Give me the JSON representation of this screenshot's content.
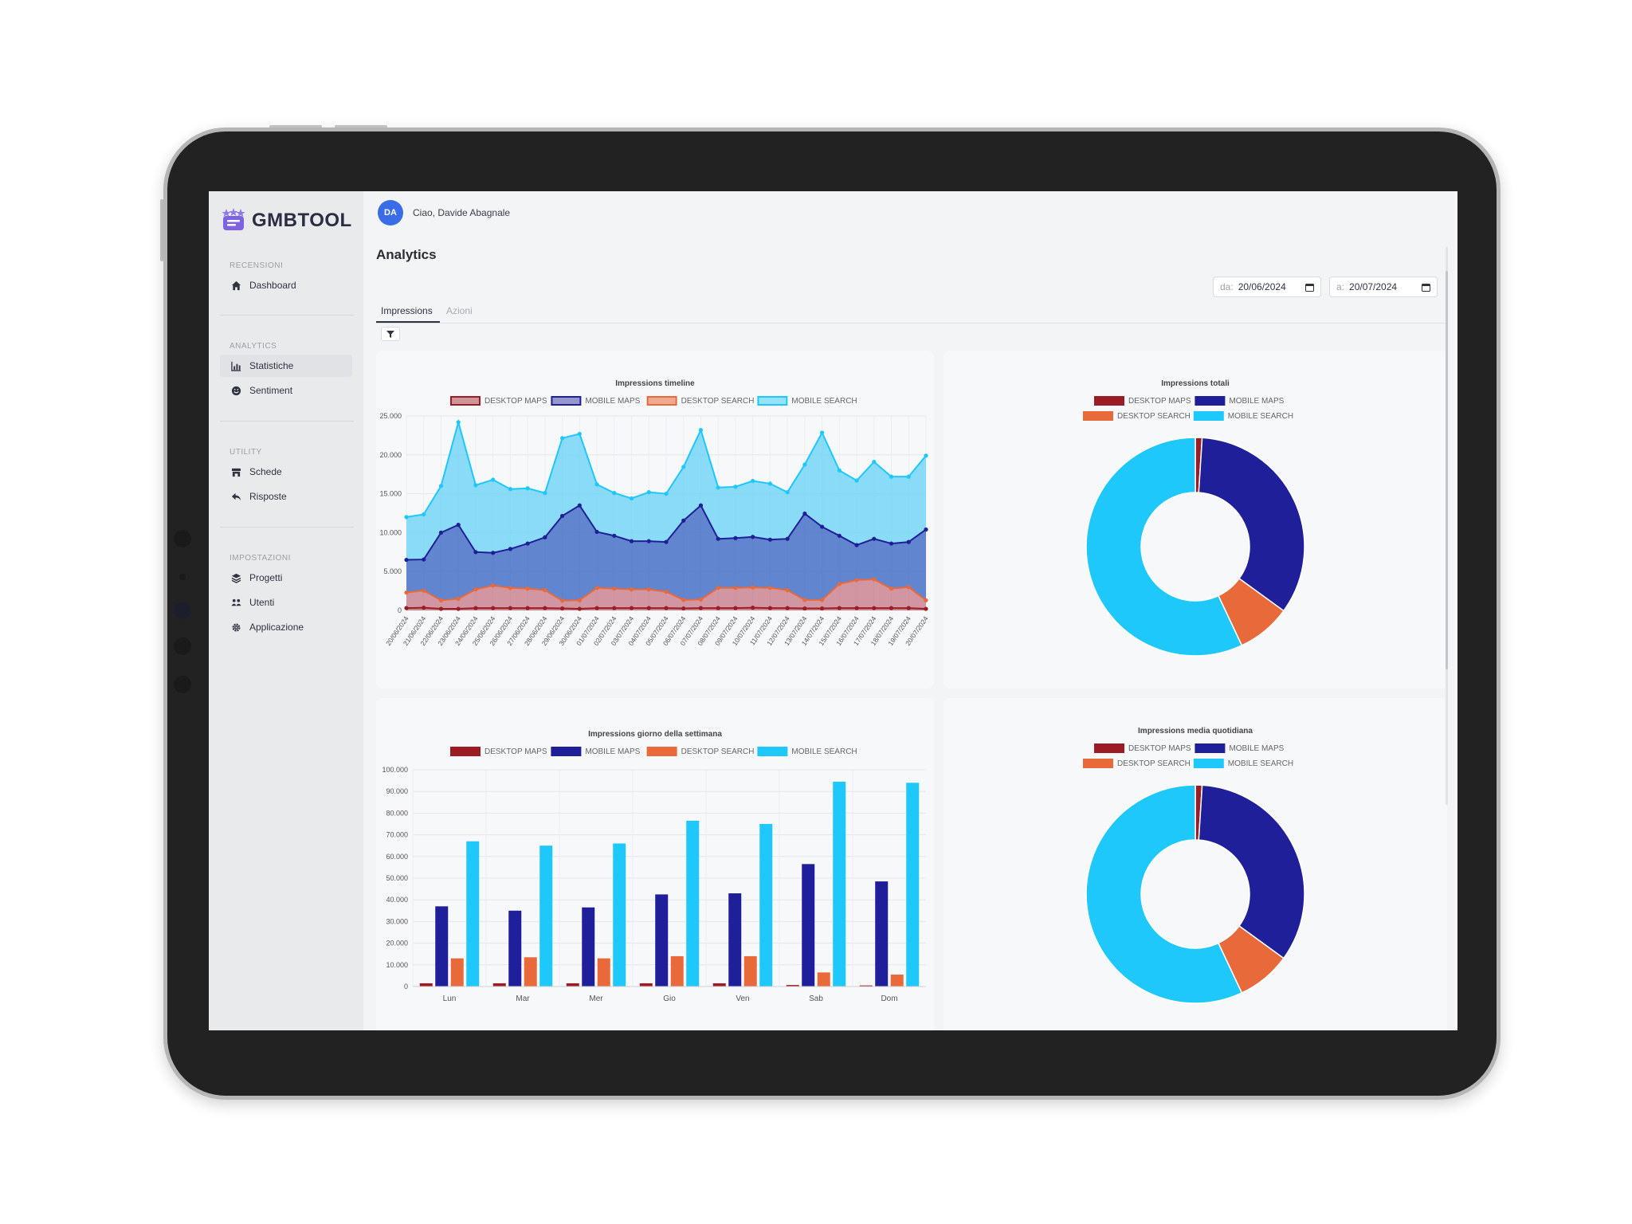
{
  "app": {
    "name": "GMBTOOL"
  },
  "user": {
    "initials": "DA",
    "greeting": "Ciao, Davide Abagnale"
  },
  "sidebar": {
    "sections": [
      {
        "title": "RECENSIONI",
        "items": [
          {
            "label": "Dashboard",
            "icon": "home-icon"
          }
        ]
      },
      {
        "title": "ANALYTICS",
        "items": [
          {
            "label": "Statistiche",
            "icon": "bar-chart-icon",
            "active": true
          },
          {
            "label": "Sentiment",
            "icon": "sentiment-icon"
          }
        ]
      },
      {
        "title": "UTILITY",
        "items": [
          {
            "label": "Schede",
            "icon": "store-icon"
          },
          {
            "label": "Risposte",
            "icon": "reply-icon"
          }
        ]
      },
      {
        "title": "IMPOSTAZIONI",
        "items": [
          {
            "label": "Progetti",
            "icon": "layers-icon"
          },
          {
            "label": "Utenti",
            "icon": "users-icon"
          },
          {
            "label": "Applicazione",
            "icon": "gear-icon"
          }
        ]
      }
    ]
  },
  "page": {
    "title": "Analytics"
  },
  "date_from": {
    "label": "da:",
    "value": "20/06/2024"
  },
  "date_to": {
    "label": "a:",
    "value": "20/07/2024"
  },
  "tabs": [
    {
      "label": "Impressions",
      "active": true
    },
    {
      "label": "Azioni",
      "active": false
    }
  ],
  "colors": {
    "desktop_maps": "#9b1c24",
    "mobile_maps": "#1f1f99",
    "desktop_search": "#e8693a",
    "mobile_search": "#1ec8fb",
    "accent": "#3b6ce8"
  },
  "chart_data": [
    {
      "type": "area",
      "title": "Impressions timeline",
      "x": [
        "20/06/2024",
        "21/06/2024",
        "22/06/2024",
        "23/06/2024",
        "24/06/2024",
        "25/06/2024",
        "26/06/2024",
        "27/06/2024",
        "28/06/2024",
        "29/06/2024",
        "30/06/2024",
        "01/07/2024",
        "02/07/2024",
        "03/07/2024",
        "04/07/2024",
        "05/07/2024",
        "06/07/2024",
        "07/07/2024",
        "08/07/2024",
        "09/07/2024",
        "10/07/2024",
        "11/07/2024",
        "12/07/2024",
        "13/07/2024",
        "14/07/2024",
        "15/07/2024",
        "16/07/2024",
        "17/07/2024",
        "18/07/2024",
        "19/07/2024",
        "20/07/2024"
      ],
      "ylim": [
        0,
        25000
      ],
      "yticks": [
        "0",
        "5.000",
        "10.000",
        "15.000",
        "20.000",
        "25.000"
      ],
      "stacked": true,
      "series": [
        {
          "name": "DESKTOP MAPS",
          "values": [
            300,
            350,
            200,
            200,
            300,
            300,
            300,
            300,
            300,
            250,
            200,
            300,
            300,
            300,
            300,
            300,
            250,
            300,
            300,
            300,
            350,
            300,
            300,
            250,
            250,
            300,
            300,
            300,
            300,
            300,
            200
          ]
        },
        {
          "name": "DESKTOP SEARCH",
          "values": [
            2000,
            2200,
            1100,
            1300,
            2400,
            2900,
            2600,
            2500,
            2300,
            1000,
            1100,
            2600,
            2500,
            2400,
            2400,
            2100,
            1100,
            1100,
            2600,
            2600,
            2600,
            2600,
            2300,
            1100,
            1100,
            3100,
            3600,
            3700,
            2500,
            2700,
            1100
          ]
        },
        {
          "name": "MOBILE MAPS",
          "values": [
            4200,
            4000,
            8700,
            9500,
            4800,
            4200,
            5000,
            5800,
            6800,
            10900,
            12200,
            7200,
            6800,
            6200,
            6200,
            6400,
            10200,
            12100,
            6300,
            6400,
            6500,
            6200,
            6600,
            11100,
            9400,
            6200,
            4500,
            5200,
            5800,
            5800,
            9100
          ]
        },
        {
          "name": "MOBILE SEARCH",
          "values": [
            5500,
            5800,
            6000,
            13200,
            8600,
            9400,
            7700,
            7100,
            5700,
            10000,
            9200,
            6100,
            5500,
            5500,
            6300,
            6200,
            6900,
            9700,
            6600,
            6600,
            7200,
            7200,
            6000,
            6300,
            12100,
            8400,
            8300,
            9900,
            8600,
            8400,
            9500
          ]
        }
      ]
    },
    {
      "type": "pie",
      "title": "Impressions totali",
      "categories": [
        "DESKTOP MAPS",
        "MOBILE MAPS",
        "DESKTOP SEARCH",
        "MOBILE SEARCH"
      ],
      "values": [
        1,
        34,
        8,
        57
      ]
    },
    {
      "type": "bar",
      "title": "Impressions giorno della settimana",
      "categories": [
        "Lun",
        "Mar",
        "Mer",
        "Gio",
        "Ven",
        "Sab",
        "Dom"
      ],
      "ylim": [
        0,
        100000
      ],
      "yticks": [
        "0",
        "10.000",
        "20.000",
        "30.000",
        "40.000",
        "50.000",
        "60.000",
        "70.000",
        "80.000",
        "90.000",
        "100.000"
      ],
      "series": [
        {
          "name": "DESKTOP MAPS",
          "values": [
            1500,
            1500,
            1500,
            1500,
            1500,
            700,
            500
          ]
        },
        {
          "name": "MOBILE MAPS",
          "values": [
            37000,
            35000,
            36500,
            42500,
            43000,
            56500,
            48500
          ]
        },
        {
          "name": "DESKTOP SEARCH",
          "values": [
            13000,
            13500,
            13000,
            14000,
            14000,
            6500,
            5500
          ]
        },
        {
          "name": "MOBILE SEARCH",
          "values": [
            67000,
            65000,
            66000,
            76500,
            75000,
            94500,
            94000
          ]
        }
      ]
    },
    {
      "type": "pie",
      "title": "Impressions media quotidiana",
      "categories": [
        "DESKTOP MAPS",
        "MOBILE MAPS",
        "DESKTOP SEARCH",
        "MOBILE SEARCH"
      ],
      "values": [
        1,
        34,
        8,
        57
      ]
    }
  ]
}
